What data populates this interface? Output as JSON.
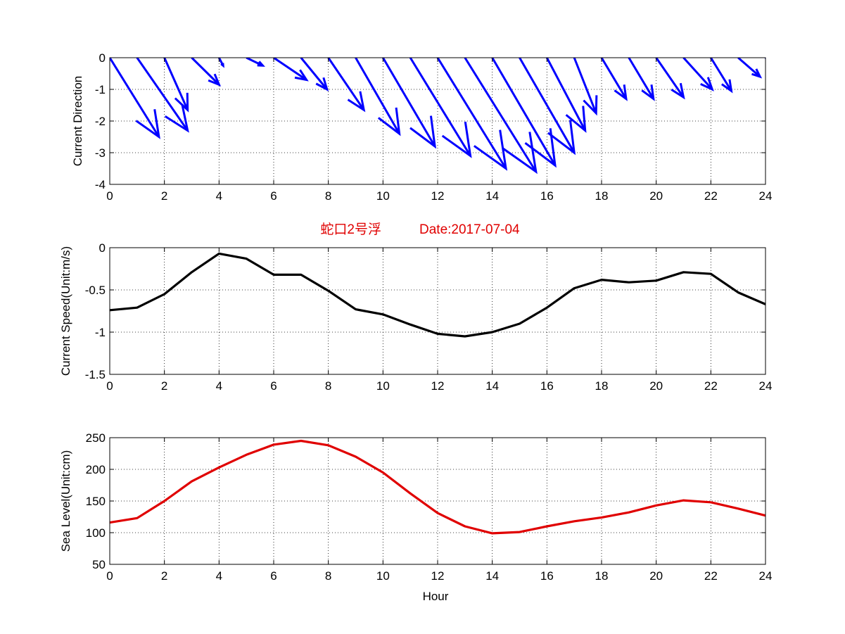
{
  "figure_title": {
    "station": "蛇口2号浮",
    "date": "Date:2017-07-04",
    "color": "#e00000"
  },
  "chart_data": [
    {
      "id": "direction",
      "type": "quiver",
      "ylabel": "Current Direction",
      "xlabel": "",
      "xlim": [
        0,
        24
      ],
      "ylim": [
        -4,
        0
      ],
      "xticks": [
        0,
        2,
        4,
        6,
        8,
        10,
        12,
        14,
        16,
        18,
        20,
        22,
        24
      ],
      "yticks": [
        0,
        -1,
        -2,
        -3,
        -4
      ],
      "grid": true,
      "color": "#0000ff",
      "hours": [
        0,
        1,
        2,
        3,
        4,
        5,
        6,
        7,
        8,
        9,
        10,
        11,
        12,
        13,
        14,
        15,
        16,
        17,
        18,
        19,
        20,
        21,
        22,
        23,
        24
      ],
      "u": [
        1.8,
        1.85,
        0.85,
        1.0,
        0.15,
        0.6,
        1.2,
        0.95,
        1.3,
        1.6,
        1.9,
        2.2,
        2.5,
        2.6,
        2.3,
        2.0,
        1.4,
        0.8,
        0.9,
        0.9,
        1.0,
        1.05,
        0.75,
        0.8,
        0.5
      ],
      "v": [
        -2.5,
        -2.3,
        -1.65,
        -0.85,
        -0.25,
        -0.25,
        -0.7,
        -1.0,
        -1.65,
        -2.4,
        -2.8,
        -3.1,
        -3.5,
        -3.6,
        -3.4,
        -3.0,
        -2.3,
        -1.75,
        -1.3,
        -1.3,
        -1.25,
        -1.0,
        -1.05,
        -0.6,
        -0.5
      ]
    },
    {
      "id": "speed",
      "type": "line",
      "ylabel": "Current Speed(Unit:m/s)",
      "xlabel": "",
      "xlim": [
        0,
        24
      ],
      "ylim": [
        -1.5,
        0
      ],
      "xticks": [
        0,
        2,
        4,
        6,
        8,
        10,
        12,
        14,
        16,
        18,
        20,
        22,
        24
      ],
      "yticks": [
        0,
        -0.5,
        -1,
        -1.5
      ],
      "grid": true,
      "color": "#000000",
      "x": [
        0,
        1,
        2,
        3,
        4,
        5,
        6,
        7,
        8,
        9,
        10,
        11,
        12,
        13,
        14,
        15,
        16,
        17,
        18,
        19,
        20,
        21,
        22,
        23,
        24
      ],
      "y": [
        -0.74,
        -0.71,
        -0.55,
        -0.29,
        -0.07,
        -0.13,
        -0.32,
        -0.32,
        -0.51,
        -0.73,
        -0.79,
        -0.91,
        -1.02,
        -1.05,
        -1.0,
        -0.9,
        -0.71,
        -0.48,
        -0.38,
        -0.41,
        -0.39,
        -0.29,
        -0.31,
        -0.53,
        -0.67
      ]
    },
    {
      "id": "sealevel",
      "type": "line",
      "ylabel": "Sea Level(Unit:cm)",
      "xlabel": "Hour",
      "xlim": [
        0,
        24
      ],
      "ylim": [
        50,
        250
      ],
      "xticks": [
        0,
        2,
        4,
        6,
        8,
        10,
        12,
        14,
        16,
        18,
        20,
        22,
        24
      ],
      "yticks": [
        250,
        200,
        150,
        100,
        50
      ],
      "grid": true,
      "color": "#e00000",
      "x": [
        0,
        1,
        2,
        3,
        4,
        5,
        6,
        7,
        8,
        9,
        10,
        11,
        12,
        13,
        14,
        15,
        16,
        17,
        18,
        19,
        20,
        21,
        22,
        23,
        24
      ],
      "y": [
        116,
        123,
        150,
        181,
        203,
        223,
        239,
        245,
        238,
        220,
        195,
        162,
        131,
        110,
        99,
        101,
        110,
        118,
        124,
        132,
        143,
        151,
        148,
        138,
        127
      ]
    }
  ]
}
